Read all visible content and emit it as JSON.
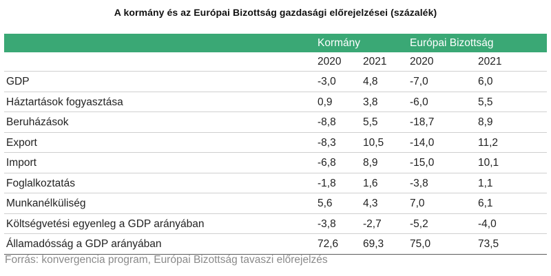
{
  "title": "A kormány és az Európai Bizottság gazdasági előrejelzései (százalék)",
  "colors": {
    "header_bar": "#3aa875",
    "header_text": "#ffffff",
    "source_text": "#8a8a8a"
  },
  "table": {
    "groups": [
      "Kormány",
      "Európai Bizottság"
    ],
    "years": [
      "2020",
      "2021",
      "2020",
      "2021"
    ],
    "rows": [
      {
        "label": "GDP",
        "values": [
          "-3,0",
          "4,8",
          "-7,0",
          "6,0"
        ]
      },
      {
        "label": "Háztartások fogyasztása",
        "values": [
          "0,9",
          "3,8",
          "-6,0",
          "5,5"
        ]
      },
      {
        "label": "Beruházások",
        "values": [
          "-8,8",
          "5,5",
          "-18,7",
          "8,9"
        ]
      },
      {
        "label": "Export",
        "values": [
          "-8,3",
          "10,5",
          "-14,0",
          "11,2"
        ]
      },
      {
        "label": "Import",
        "values": [
          "-6,8",
          "8,9",
          "-15,0",
          "10,1"
        ]
      },
      {
        "label": "Foglalkoztatás",
        "values": [
          "-1,8",
          "1,6",
          "-3,8",
          "1,1"
        ]
      },
      {
        "label": "Munkanélküliség",
        "values": [
          "5,6",
          "4,3",
          "7,0",
          "6,1"
        ]
      },
      {
        "label": "Költségvetési egyenleg a GDP arányában",
        "values": [
          "-3,8",
          "-2,7",
          "-5,2",
          "-4,0"
        ]
      },
      {
        "label": "Államadósság a GDP arányában",
        "values": [
          "72,6",
          "69,3",
          "75,0",
          "73,5"
        ]
      }
    ]
  },
  "source": "Forrás: konvergencia program, Európai Bizottság tavaszi előrejelzés"
}
